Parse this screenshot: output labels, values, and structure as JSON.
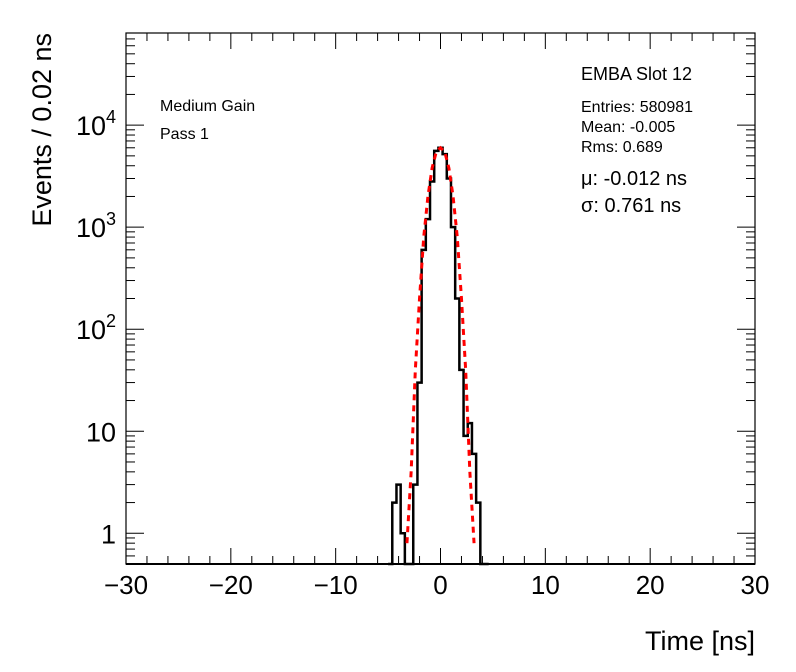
{
  "chart_data": {
    "type": "histogram",
    "title": "",
    "xlabel": "Time [ns]",
    "ylabel": "Events / 0.02 ns",
    "xlim": [
      -30,
      30
    ],
    "ylim": [
      0.5,
      80000
    ],
    "yscale": "log",
    "x_ticks": [
      -30,
      -20,
      -10,
      0,
      10,
      20,
      30
    ],
    "x_tick_labels": [
      "−30",
      "−20",
      "−10",
      "0",
      "10",
      "20",
      "30"
    ],
    "y_ticks": [
      1,
      10,
      100,
      1000,
      10000
    ],
    "y_tick_labels": {
      "base": [
        "1",
        "10",
        "10",
        "10",
        "10"
      ],
      "exp": [
        "",
        "",
        "2",
        "3",
        "4"
      ]
    },
    "series": [
      {
        "name": "data",
        "color": "#000000",
        "style": "step",
        "x": [
          -4.8,
          -4.4,
          -4.0,
          -3.6,
          -3.2,
          -2.8,
          -2.4,
          -2.0,
          -1.6,
          -1.2,
          -0.8,
          -0.4,
          0.0,
          0.4,
          0.8,
          1.2,
          1.6,
          2.0,
          2.4,
          2.8,
          3.2,
          3.6,
          4.0,
          4.4
        ],
        "values": [
          0.5,
          2,
          3,
          1,
          0.5,
          0.5,
          3,
          30,
          600,
          1200,
          2800,
          5600,
          6000,
          5200,
          3000,
          1000,
          200,
          40,
          9,
          12,
          6,
          2,
          0.5,
          0.5
        ]
      },
      {
        "name": "gaussian fit",
        "color": "#ff0000",
        "style": "dashed",
        "x": [
          -3.2,
          -2.8,
          -2.4,
          -2.0,
          -1.6,
          -1.2,
          -0.8,
          -0.4,
          0.0,
          0.4,
          0.8,
          1.2,
          1.6,
          2.0,
          2.4,
          2.8,
          3.2
        ],
        "values": [
          0.8,
          4,
          40,
          200,
          800,
          2000,
          3800,
          5500,
          6000,
          5500,
          3800,
          2000,
          800,
          200,
          40,
          4,
          0.8
        ]
      }
    ]
  },
  "annotations": {
    "gain": "Medium Gain",
    "pass": "Pass 1",
    "label": "EMBA Slot 12",
    "entries": "Entries: 580981",
    "mean": "Mean: -0.005",
    "rms": "Rms: 0.689",
    "mu": "μ: -0.012 ns",
    "sigma": "σ: 0.761 ns"
  },
  "colors": {
    "axis": "#000000",
    "data": "#000000",
    "fit": "#ff0000"
  }
}
